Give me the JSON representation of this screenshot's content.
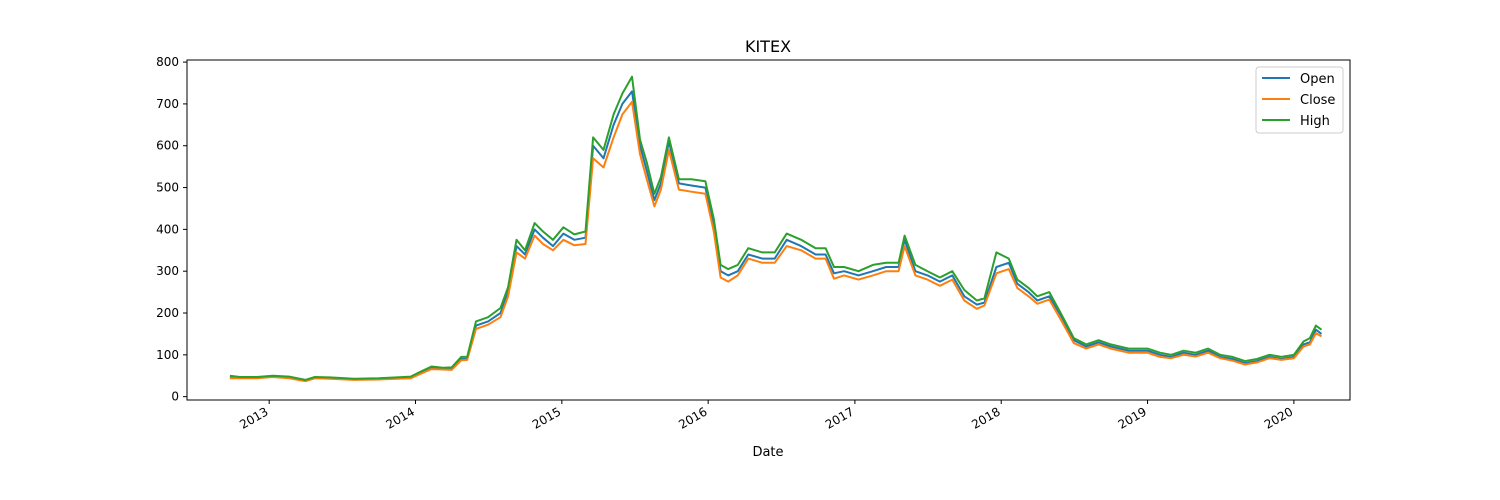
{
  "chart_data": {
    "type": "line",
    "title": "KITEX",
    "xlabel": "Date",
    "ylabel": "",
    "ylim": [
      -8,
      805
    ],
    "xlim": [
      "2012-06-10",
      "2020-05-20"
    ],
    "yticks": [
      0,
      100,
      200,
      300,
      400,
      500,
      600,
      700,
      800
    ],
    "xticks": [
      "2013-01-01",
      "2014-01-01",
      "2015-01-01",
      "2016-01-01",
      "2017-01-01",
      "2018-01-01",
      "2019-01-01",
      "2020-01-01"
    ],
    "xtick_labels": [
      "2013",
      "2014",
      "2015",
      "2016",
      "2017",
      "2018",
      "2019",
      "2020"
    ],
    "legend_position": "top-right",
    "grid": false,
    "dates": [
      "2012-09-25",
      "2012-10-20",
      "2012-12-01",
      "2013-01-10",
      "2013-02-20",
      "2013-04-01",
      "2013-04-25",
      "2013-06-01",
      "2013-08-01",
      "2013-10-01",
      "2013-11-15",
      "2013-12-20",
      "2014-01-10",
      "2014-02-10",
      "2014-03-10",
      "2014-04-01",
      "2014-04-25",
      "2014-05-10",
      "2014-06-01",
      "2014-07-01",
      "2014-08-01",
      "2014-08-20",
      "2014-09-10",
      "2014-10-01",
      "2014-10-25",
      "2014-11-15",
      "2014-12-10",
      "2015-01-05",
      "2015-02-01",
      "2015-03-01",
      "2015-03-20",
      "2015-04-15",
      "2015-05-10",
      "2015-06-01",
      "2015-06-25",
      "2015-07-15",
      "2015-08-01",
      "2015-08-20",
      "2015-09-05",
      "2015-09-25",
      "2015-10-20",
      "2015-11-20",
      "2015-12-25",
      "2016-01-15",
      "2016-02-01",
      "2016-02-20",
      "2016-03-15",
      "2016-04-10",
      "2016-05-15",
      "2016-06-15",
      "2016-07-15",
      "2016-08-20",
      "2016-09-25",
      "2016-10-20",
      "2016-11-10",
      "2016-12-05",
      "2017-01-10",
      "2017-02-15",
      "2017-03-20",
      "2017-04-20",
      "2017-05-05",
      "2017-06-01",
      "2017-07-01",
      "2017-08-01",
      "2017-09-01",
      "2017-10-01",
      "2017-11-01",
      "2017-11-20",
      "2017-12-20",
      "2018-01-20",
      "2018-02-10",
      "2018-03-10",
      "2018-04-01",
      "2018-05-01",
      "2018-06-01",
      "2018-07-01",
      "2018-08-01",
      "2018-09-01",
      "2018-10-01",
      "2018-11-15",
      "2019-01-01",
      "2019-02-01",
      "2019-03-01",
      "2019-04-01",
      "2019-05-01",
      "2019-06-01",
      "2019-07-01",
      "2019-08-01",
      "2019-09-01",
      "2019-10-01",
      "2019-11-01",
      "2019-12-01",
      "2020-01-01",
      "2020-01-25",
      "2020-02-10",
      "2020-02-25",
      "2020-03-10"
    ],
    "series": [
      {
        "name": "Open",
        "color": "#1f77b4",
        "values": [
          46,
          45,
          45,
          48,
          45,
          38,
          45,
          44,
          41,
          42,
          44,
          45,
          55,
          68,
          66,
          66,
          90,
          90,
          170,
          180,
          200,
          250,
          360,
          340,
          400,
          380,
          360,
          390,
          375,
          380,
          600,
          570,
          650,
          700,
          730,
          600,
          540,
          470,
          510,
          610,
          510,
          505,
          500,
          410,
          300,
          290,
          300,
          340,
          330,
          330,
          375,
          360,
          340,
          340,
          295,
          300,
          290,
          300,
          310,
          310,
          375,
          300,
          290,
          275,
          290,
          240,
          220,
          225,
          310,
          320,
          270,
          250,
          230,
          240,
          190,
          135,
          120,
          130,
          120,
          110,
          110,
          100,
          95,
          105,
          100,
          110,
          95,
          90,
          80,
          85,
          95,
          90,
          95,
          125,
          130,
          160,
          150
        ]
      },
      {
        "name": "Close",
        "color": "#ff7f0e",
        "values": [
          44,
          44,
          44,
          47,
          44,
          37,
          44,
          43,
          40,
          41,
          43,
          44,
          53,
          66,
          65,
          64,
          87,
          88,
          162,
          172,
          190,
          240,
          345,
          330,
          385,
          365,
          350,
          375,
          362,
          365,
          570,
          548,
          620,
          675,
          705,
          580,
          520,
          455,
          495,
          590,
          495,
          490,
          485,
          395,
          285,
          275,
          290,
          330,
          320,
          320,
          360,
          350,
          330,
          330,
          282,
          290,
          280,
          290,
          300,
          300,
          360,
          290,
          280,
          265,
          280,
          230,
          210,
          218,
          295,
          305,
          260,
          240,
          222,
          232,
          180,
          128,
          115,
          125,
          115,
          105,
          105,
          95,
          92,
          100,
          96,
          105,
          92,
          86,
          77,
          82,
          92,
          88,
          92,
          120,
          125,
          152,
          144
        ]
      },
      {
        "name": "High",
        "color": "#2ca02c",
        "values": [
          50,
          47,
          47,
          50,
          48,
          40,
          47,
          46,
          43,
          44,
          46,
          48,
          58,
          72,
          69,
          70,
          95,
          95,
          180,
          190,
          212,
          262,
          375,
          350,
          415,
          395,
          375,
          405,
          388,
          395,
          620,
          590,
          675,
          725,
          765,
          615,
          560,
          485,
          525,
          620,
          520,
          520,
          515,
          425,
          315,
          305,
          315,
          355,
          345,
          345,
          390,
          375,
          355,
          355,
          310,
          310,
          300,
          315,
          320,
          320,
          385,
          315,
          300,
          285,
          300,
          255,
          230,
          235,
          345,
          330,
          280,
          260,
          240,
          250,
          195,
          140,
          125,
          135,
          125,
          115,
          115,
          105,
          100,
          110,
          105,
          115,
          100,
          95,
          85,
          90,
          100,
          95,
          100,
          132,
          140,
          170,
          160
        ]
      }
    ]
  }
}
